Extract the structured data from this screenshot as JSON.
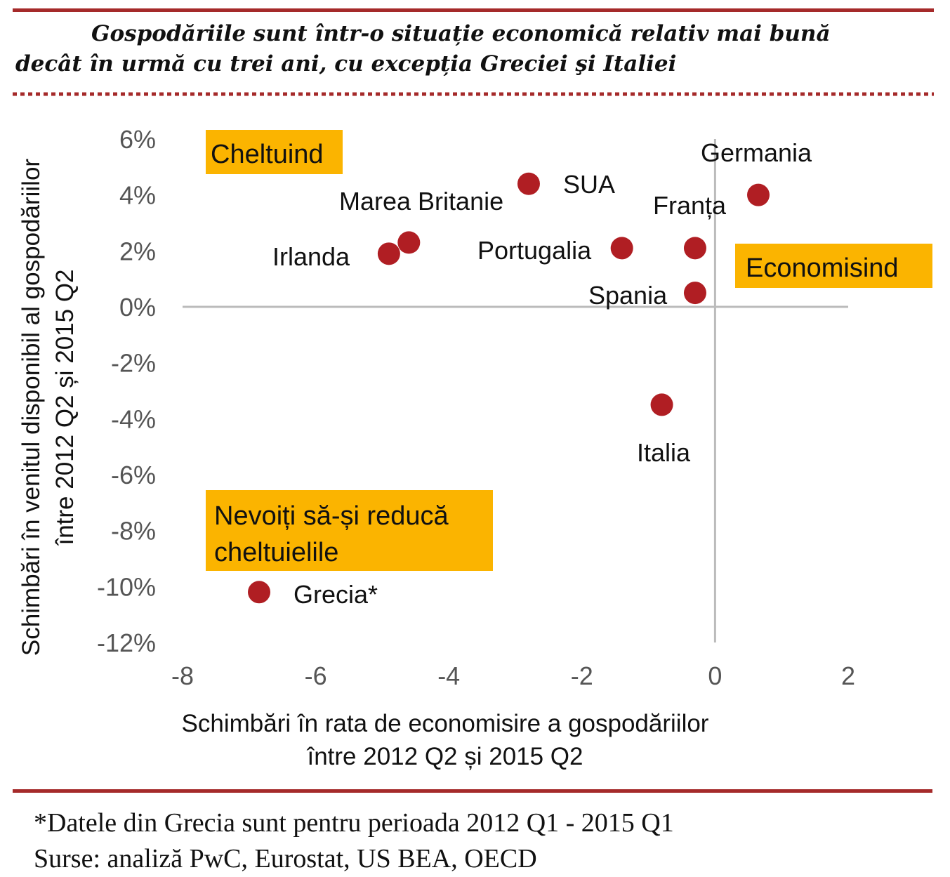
{
  "title_lines": [
    "Gospodăriile sunt într-o situație economică relativ mai bună",
    "decât în urmă cu trei ani, cu excepția Greciei şi Italiei"
  ],
  "colors": {
    "accent": "#a52a2a",
    "dot": "#b01e23",
    "quadrant_box": "#fbb400",
    "axis": "#bbbbbb"
  },
  "chart_data": {
    "type": "scatter",
    "xlabel_lines": [
      "Schimbări în rata de economisire a gospodăriilor",
      "între 2012 Q2 și 2015 Q2"
    ],
    "ylabel_lines": [
      "Schimbări în venitul disponibil al gospodăriilor",
      "între 2012 Q2 și 2015 Q2"
    ],
    "xlim": [
      -8,
      2
    ],
    "ylim": [
      -12,
      6
    ],
    "x_ticks": [
      "-8",
      "-6",
      "-4",
      "-2",
      "0",
      "2"
    ],
    "y_ticks": [
      "6%",
      "4%",
      "2%",
      "0%",
      "-2%",
      "-4%",
      "-6%",
      "-8%",
      "-10%",
      "-12%"
    ],
    "points": [
      {
        "label": "Germania",
        "x": 0.65,
        "y": 4.0
      },
      {
        "label": "SUA",
        "x": -2.8,
        "y": 4.4
      },
      {
        "label": "Marea Britanie",
        "x": -4.6,
        "y": 2.3
      },
      {
        "label": "Irlanda",
        "x": -4.9,
        "y": 1.9
      },
      {
        "label": "Portugalia",
        "x": -1.4,
        "y": 2.1
      },
      {
        "label": "Franța",
        "x": -0.3,
        "y": 2.1
      },
      {
        "label": "Spania",
        "x": -0.3,
        "y": 0.5
      },
      {
        "label": "Italia",
        "x": -0.8,
        "y": -3.5
      },
      {
        "label": "Grecia*",
        "x": -6.85,
        "y": -10.2
      }
    ],
    "quadrant_labels": [
      [
        "Cheltuind"
      ],
      [
        "Economisind"
      ],
      [
        "Nevoiți să-și reducă",
        "cheltuielile"
      ]
    ],
    "grid": false,
    "legend": "none"
  },
  "footnotes": [
    "*Datele din Grecia sunt pentru perioada 2012 Q1 - 2015 Q1",
    "Surse: analiză PwC, Eurostat, US BEA, OECD"
  ]
}
